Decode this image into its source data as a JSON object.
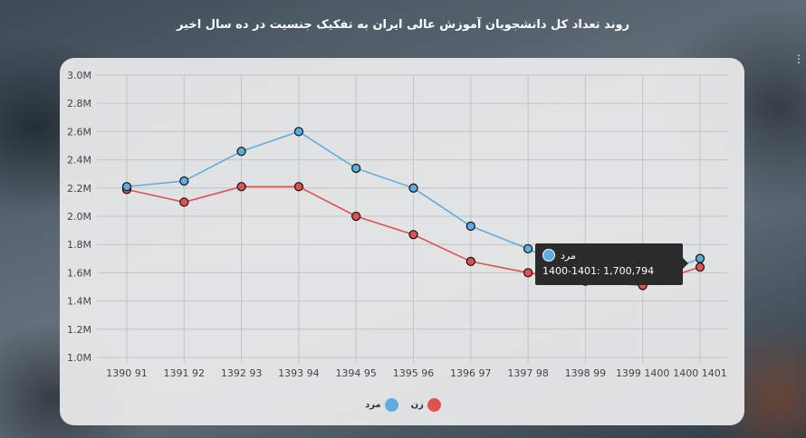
{
  "title": "روند تعداد کل دانشجویان آموزش عالی ایران به تفکیک جنسیت در ده سال اخیر",
  "tooltip": {
    "series": "مرد",
    "text": "1400-1401: 1,700,794"
  },
  "colors": {
    "male": "#5dade2",
    "female": "#e05252"
  },
  "side_icon": "more-vertical-icon",
  "chart_data": {
    "type": "line",
    "categories": [
      "1390 91",
      "1391 92",
      "1392 93",
      "1393 94",
      "1394 95",
      "1395 96",
      "1396 97",
      "1397 98",
      "1398 99",
      "1399 1400",
      "1400 1401"
    ],
    "ylim": [
      1000000,
      3000000
    ],
    "y_ticks": [
      {
        "value": 1000000,
        "label": "1.0M"
      },
      {
        "value": 1200000,
        "label": "1.2M"
      },
      {
        "value": 1400000,
        "label": "1.4M"
      },
      {
        "value": 1600000,
        "label": "1.6M"
      },
      {
        "value": 1800000,
        "label": "1.8M"
      },
      {
        "value": 2000000,
        "label": "2.0M"
      },
      {
        "value": 2200000,
        "label": "2.2M"
      },
      {
        "value": 2400000,
        "label": "2.4M"
      },
      {
        "value": 2600000,
        "label": "2.6M"
      },
      {
        "value": 2800000,
        "label": "2.8M"
      },
      {
        "value": 3000000,
        "label": "3.0M"
      }
    ],
    "grid": true,
    "legend_position": "bottom-center",
    "series": [
      {
        "name": "مرد",
        "color": "#5dade2",
        "values": [
          2210000,
          2250000,
          2460000,
          2600000,
          2340000,
          2200000,
          1930000,
          1770000,
          1580000,
          1550000,
          1700794
        ]
      },
      {
        "name": "زن",
        "color": "#e05252",
        "values": [
          2190000,
          2100000,
          2210000,
          2210000,
          2000000,
          1870000,
          1680000,
          1600000,
          1540000,
          1510000,
          1640000
        ]
      }
    ]
  }
}
